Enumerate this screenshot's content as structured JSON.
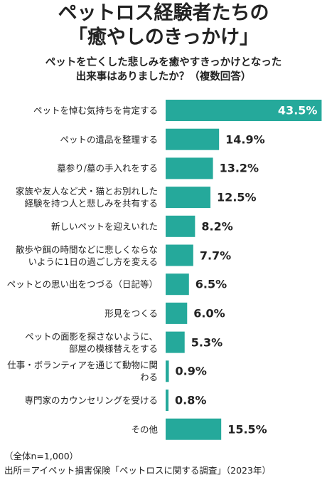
{
  "chart_data": {
    "type": "bar",
    "orientation": "horizontal",
    "title": "ペットロス経験者たちの\n「癒やしのきっかけ」",
    "subtitle": "ペットを亡くした悲しみを癒やすきっかけとなった\n出来事はありましたか？（複数回答）",
    "categories": [
      "ペットを悼む気持ちを肯定する",
      "ペットの遺品を整理する",
      "墓参り/墓の手入れをする",
      "家族や友人など犬・猫とお別れした\n経験を持つ人と悲しみを共有する",
      "新しいペットを迎えいれた",
      "散歩や餌の時間などに悲しくならな\nいように1日の過ごし方を変える",
      "ペットとの思い出をつづる（日記等）",
      "形見をつくる",
      "ペットの面影を探さないように、\n部屋の模様替えをする",
      "仕事・ボランティアを通じて動物に関わる",
      "専門家のカウンセリングを受ける",
      "その他"
    ],
    "values": [
      43.5,
      14.9,
      13.2,
      12.5,
      8.2,
      7.7,
      6.5,
      6.0,
      5.3,
      0.9,
      0.8,
      15.5
    ],
    "value_labels": [
      "43.5%",
      "14.9%",
      "13.2%",
      "12.5%",
      "8.2%",
      "7.7%",
      "6.5%",
      "6.0%",
      "5.3%",
      "0.9%",
      "0.8%",
      "15.5%"
    ],
    "color": "#25a99b",
    "xlim": [
      0,
      45
    ],
    "notes": [
      "（全体n=1,000）",
      "出所＝アイペット損害保険「ペットロスに関する調査」（2023年）"
    ]
  }
}
